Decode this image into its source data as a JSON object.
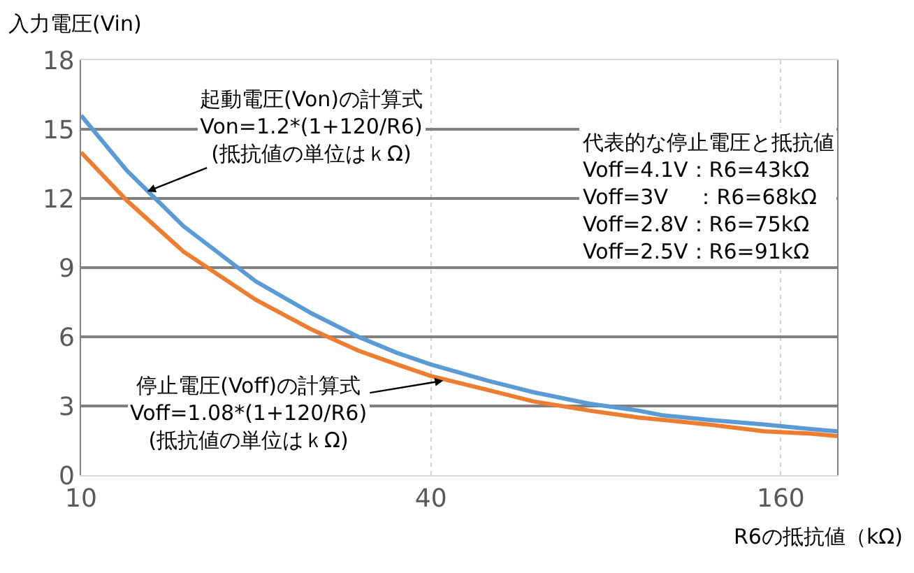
{
  "chart_data": {
    "type": "line",
    "xlabel": "R6の抵抗値（kΩ)",
    "ylabel": "入力電圧(Vin)",
    "x": [
      10,
      12,
      15,
      20,
      25,
      30,
      35,
      40,
      50,
      60,
      75,
      91,
      100,
      120,
      150,
      180,
      200
    ],
    "series": [
      {
        "color": "#5b9bd5",
        "values": [
          15.6,
          13.2,
          10.8,
          8.4,
          7.0,
          6.0,
          5.3,
          4.8,
          4.1,
          3.6,
          3.1,
          2.8,
          2.6,
          2.4,
          2.2,
          2.0,
          1.9
        ]
      },
      {
        "color": "#ed7d31",
        "values": [
          14.0,
          11.9,
          9.7,
          7.6,
          6.3,
          5.4,
          4.8,
          4.3,
          3.7,
          3.2,
          2.8,
          2.5,
          2.4,
          2.2,
          1.9,
          1.8,
          1.7
        ]
      }
    ],
    "log": "x",
    "xlim": [
      10,
      200
    ],
    "xticks": [
      10,
      40,
      160
    ],
    "ylim": [
      0,
      18
    ],
    "yticks": [
      0,
      3,
      6,
      9,
      12,
      15,
      18
    ],
    "grid": true,
    "marker": "none",
    "line_style": "solid",
    "annotations": [
      {
        "text": "起動電圧(Von)の計算式\nVon=1.2*(1+120/R6)\n(抵抗値の単位はｋΩ)",
        "x": 13,
        "y": 12.3
      },
      {
        "text": "停止電圧(Voff)の計算式\nVoff=1.08*(1+120/R6)\n(抵抗値の単位はｋΩ)",
        "x": 42,
        "y": 4.1
      },
      "代表的な停止電圧と抵抗値\nVoff=4.1V：R6=43kΩ\nVoff=3V　 ：R6=68kΩ\nVoff=2.8V：R6=75kΩ\nVoff=2.5V：R6=91kΩ"
    ]
  }
}
